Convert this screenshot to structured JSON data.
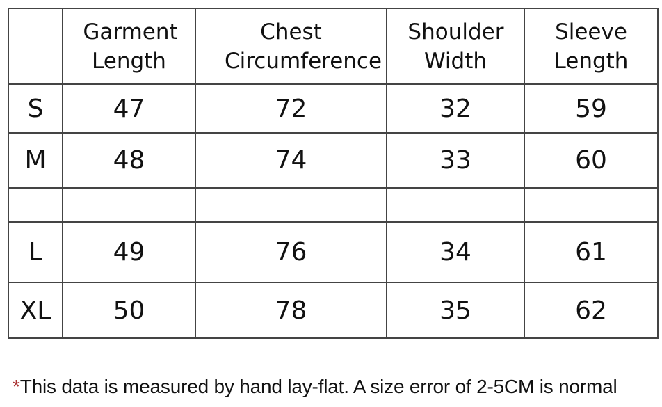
{
  "table": {
    "header": [
      "Garment Length",
      "Chest Circumference",
      "Shoulder Width",
      "Sleeve Length"
    ],
    "rows": [
      {
        "size": "S",
        "values": [
          47,
          72,
          32,
          59
        ]
      },
      {
        "size": "M",
        "values": [
          48,
          74,
          33,
          60
        ]
      },
      {
        "size": "L",
        "values": [
          49,
          76,
          34,
          61
        ]
      },
      {
        "size": "XL",
        "values": [
          50,
          78,
          35,
          62
        ]
      }
    ]
  },
  "note": {
    "mark": "*",
    "text": "This data is measured by hand lay-flat. A size error of 2-5CM is normal"
  }
}
